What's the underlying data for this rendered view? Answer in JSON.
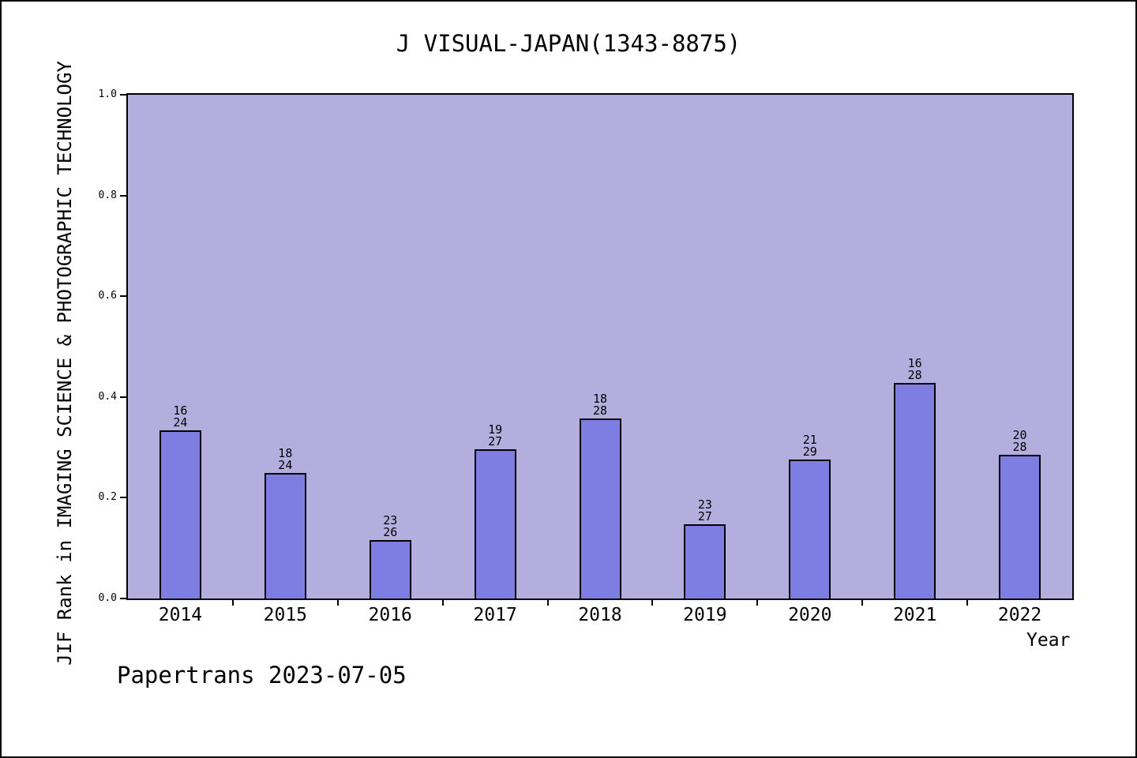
{
  "page": {
    "footer": "Papertrans 2023-07-05"
  },
  "chart_data": {
    "type": "bar",
    "title": "J VISUAL-JAPAN(1343-8875)",
    "xlabel": "Year",
    "ylabel": "JIF Rank in IMAGING SCIENCE & PHOTOGRAPHIC TECHNOLOGY",
    "categories": [
      "2014",
      "2015",
      "2016",
      "2017",
      "2018",
      "2019",
      "2020",
      "2021",
      "2022"
    ],
    "ranks": [
      16,
      18,
      23,
      19,
      18,
      23,
      21,
      16,
      20
    ],
    "totals": [
      24,
      24,
      26,
      27,
      28,
      27,
      29,
      28,
      28
    ],
    "values": [
      0.3333,
      0.25,
      0.1154,
      0.2963,
      0.3571,
      0.1481,
      0.2759,
      0.4286,
      0.2857
    ],
    "ylim": [
      0,
      1
    ],
    "yticks": [
      "0.0",
      "0.2",
      "0.4",
      "0.6",
      "0.8",
      "1.0"
    ],
    "grid": "off",
    "legend": "none",
    "colors": {
      "bar_fill": "#7e7ee2",
      "bar_border": "#000000",
      "plot_background": "#b3aedd",
      "page_background": "#ffffff"
    }
  }
}
